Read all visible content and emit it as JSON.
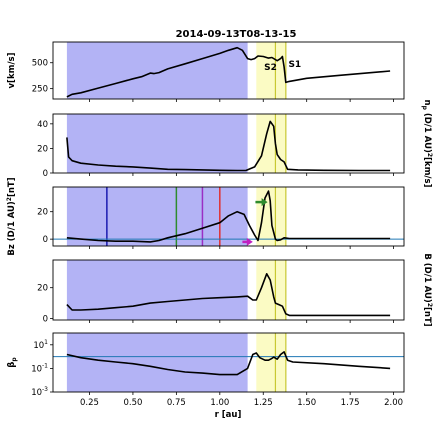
{
  "chart_data": {
    "type": "line",
    "title": "2014-09-13T08-13-15",
    "xlabel": "r [au]",
    "xlim": [
      0.04,
      2.06
    ],
    "xticks": [
      "0.25",
      "0.50",
      "0.75",
      "1.00",
      "1.25",
      "1.50",
      "1.75",
      "2.00"
    ],
    "xtick_values": [
      0.25,
      0.5,
      0.75,
      1.0,
      1.25,
      1.5,
      1.75,
      2.0
    ],
    "shaded_regions": [
      {
        "x0": 0.12,
        "x1": 1.16,
        "color": "#b3b3f5"
      },
      {
        "x0": 1.21,
        "x1": 1.38,
        "color": "#fbfbc4"
      }
    ],
    "shock_lines": [
      {
        "name": "S2",
        "x": 1.32
      },
      {
        "name": "S1",
        "x": 1.38
      }
    ],
    "line_colors": {
      "profile": "#000000",
      "shock": "#c8c832",
      "zero": "#1f77b4"
    },
    "panels": [
      {
        "ylabel": "v[km/s]",
        "ylim": [
          150,
          700
        ],
        "yticks": [
          "250",
          "500"
        ],
        "ytick_values": [
          250,
          500
        ],
        "annotations": [
          {
            "text": "S2",
            "x": 1.255,
            "y": 430
          },
          {
            "text": "S1",
            "x": 1.395,
            "y": 460
          }
        ],
        "series": [
          {
            "x": [
              0.12,
              0.15,
              0.2,
              0.3,
              0.4,
              0.5,
              0.55,
              0.6,
              0.62,
              0.65,
              0.7,
              0.8,
              0.9,
              1.0,
              1.05,
              1.1,
              1.13,
              1.16,
              1.18,
              1.2,
              1.22,
              1.25,
              1.28,
              1.3,
              1.33,
              1.35,
              1.36,
              1.37,
              1.38,
              1.4,
              1.5,
              1.7,
              1.98
            ],
            "y": [
              170,
              195,
              210,
              255,
              300,
              345,
              365,
              400,
              395,
              405,
              440,
              490,
              540,
              590,
              620,
              645,
              620,
              540,
              530,
              540,
              565,
              560,
              545,
              550,
              520,
              540,
              560,
              460,
              310,
              320,
              350,
              380,
              420
            ]
          }
        ]
      },
      {
        "ylabel": "n_p (D/1 AU)^2[km/s]",
        "ylim": [
          0,
          48
        ],
        "yticks": [
          "0",
          "20",
          "40"
        ],
        "ytick_values": [
          0,
          20,
          40
        ],
        "series": [
          {
            "x": [
              0.12,
              0.13,
              0.15,
              0.2,
              0.3,
              0.4,
              0.5,
              0.6,
              0.7,
              0.8,
              0.9,
              1.0,
              1.05,
              1.1,
              1.15,
              1.2,
              1.24,
              1.27,
              1.29,
              1.31,
              1.32,
              1.33,
              1.35,
              1.37,
              1.39,
              1.45,
              1.6,
              1.8,
              1.98
            ],
            "y": [
              29,
              13,
              10,
              8,
              6.5,
              5.5,
              5,
              4,
              3,
              2.8,
              2.5,
              2.2,
              2.1,
              2,
              2,
              5,
              14,
              32,
              42,
              38,
              24,
              15,
              11,
              9,
              3,
              2.5,
              2.2,
              2,
              2
            ]
          }
        ]
      },
      {
        "ylabel": "Bz (D/1 AU)^2[nT]",
        "ylim": [
          -5,
          38
        ],
        "yticks": [
          "0",
          "20"
        ],
        "ytick_values": [
          0,
          20
        ],
        "markers": [
          {
            "x": 0.35,
            "color": "#1b1bb0"
          },
          {
            "x": 0.75,
            "color": "#2e8b2e"
          },
          {
            "x": 0.9,
            "color": "#9a2ec4"
          },
          {
            "x": 1.0,
            "color": "#e03030"
          }
        ],
        "arrows": [
          {
            "color": "#2e8b2e",
            "x0": 1.205,
            "x1": 1.275,
            "y": 27
          },
          {
            "color": "#c020c0",
            "x0": 1.13,
            "x1": 1.19,
            "y": -2
          }
        ],
        "series": [
          {
            "x": [
              0.12,
              0.2,
              0.3,
              0.4,
              0.5,
              0.6,
              0.65,
              0.7,
              0.8,
              0.9,
              1.0,
              1.05,
              1.1,
              1.14,
              1.17,
              1.2,
              1.22,
              1.24,
              1.26,
              1.28,
              1.29,
              1.3,
              1.32,
              1.33,
              1.35,
              1.37,
              1.4,
              1.6,
              1.98
            ],
            "y": [
              1,
              0,
              -1,
              -1.5,
              -1.5,
              -2,
              -1,
              1,
              4,
              8,
              12,
              17,
              20,
              18,
              10,
              3,
              -1,
              12,
              30,
              35,
              28,
              10,
              0,
              -1,
              -0.5,
              1,
              0.5,
              0.5,
              0.5
            ]
          }
        ]
      },
      {
        "ylabel": "B (D/1 AU)^2[nT]",
        "ylim": [
          -1,
          38
        ],
        "yticks": [
          "0",
          "20"
        ],
        "ytick_values": [
          0,
          20
        ],
        "series": [
          {
            "x": [
              0.12,
              0.15,
              0.2,
              0.3,
              0.4,
              0.5,
              0.6,
              0.7,
              0.8,
              0.9,
              1.0,
              1.1,
              1.16,
              1.19,
              1.21,
              1.24,
              1.27,
              1.29,
              1.31,
              1.32,
              1.34,
              1.36,
              1.38,
              1.4,
              1.5,
              1.7,
              1.98
            ],
            "y": [
              9,
              5.5,
              5.5,
              6,
              7,
              8,
              10,
              11,
              12,
              13,
              13.5,
              14,
              14.5,
              12,
              12,
              20,
              29,
              25,
              14,
              10,
              9,
              8,
              3,
              2,
              2,
              2,
              2
            ]
          }
        ]
      },
      {
        "ylabel": "β_p",
        "yscale": "log",
        "ylim": [
          0.001,
          100
        ],
        "yticks": [
          "10^1",
          "10^-1",
          "10^-3"
        ],
        "ytick_values": [
          10,
          0.1,
          0.001
        ],
        "reference_line": 1,
        "series": [
          {
            "x": [
              0.12,
              0.2,
              0.3,
              0.4,
              0.5,
              0.6,
              0.7,
              0.8,
              0.9,
              1.0,
              1.05,
              1.1,
              1.16,
              1.19,
              1.21,
              1.23,
              1.26,
              1.28,
              1.3,
              1.31,
              1.33,
              1.35,
              1.37,
              1.39,
              1.42,
              1.6,
              1.8,
              1.98
            ],
            "y": [
              1.5,
              0.8,
              0.5,
              0.35,
              0.25,
              0.15,
              0.08,
              0.05,
              0.04,
              0.03,
              0.03,
              0.03,
              0.1,
              1.5,
              2,
              0.8,
              0.5,
              0.5,
              0.7,
              0.9,
              0.6,
              1.5,
              2.5,
              0.5,
              0.35,
              0.25,
              0.15,
              0.1
            ]
          }
        ]
      }
    ]
  }
}
